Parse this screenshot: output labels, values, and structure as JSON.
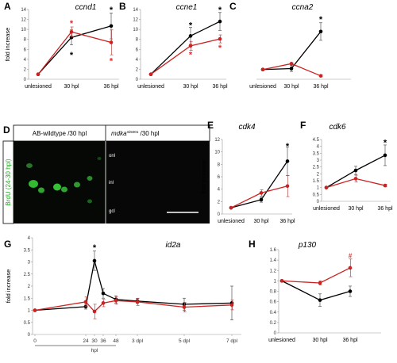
{
  "colors": {
    "black_series": "#000000",
    "red_series": "#cc2222",
    "sig_black": "#000000",
    "sig_red": "#e03030"
  },
  "chart_data": [
    {
      "panel": "A",
      "title": "ccnd1",
      "type": "line",
      "categories": [
        "unlesioned",
        "30 hpl",
        "36 hpl"
      ],
      "ylabel": "fold increase",
      "ylim": [
        0,
        14
      ],
      "yticks": [
        0,
        2,
        4,
        6,
        8,
        10,
        12,
        14
      ],
      "series": [
        {
          "color": "#000000",
          "values": [
            1,
            8.4,
            10.7
          ],
          "errors": [
            0,
            1.5,
            2.6
          ]
        },
        {
          "color": "#cc2222",
          "values": [
            1,
            9.5,
            7.4
          ],
          "errors": [
            0,
            1.0,
            2.5
          ]
        }
      ],
      "markers": [
        {
          "symbol": "*",
          "color": "#000000",
          "x": 1,
          "y": 4.9
        },
        {
          "symbol": "*",
          "color": "#e03030",
          "x": 1,
          "y": 11.3
        },
        {
          "symbol": "*",
          "color": "#000000",
          "x": 2,
          "y": 14.0
        },
        {
          "symbol": "*",
          "color": "#e03030",
          "x": 2,
          "y": 3.7
        }
      ]
    },
    {
      "panel": "B",
      "title": "ccne1",
      "type": "line",
      "categories": [
        "unlesioned",
        "30 hpl",
        "36 hpl"
      ],
      "ylabel": "",
      "ylim": [
        0,
        14
      ],
      "yticks": [
        0,
        2,
        4,
        6,
        8,
        10,
        12,
        14
      ],
      "series": [
        {
          "color": "#000000",
          "values": [
            1,
            8.7,
            11.6
          ],
          "errors": [
            0,
            1.7,
            1.8
          ]
        },
        {
          "color": "#cc2222",
          "values": [
            1,
            6.7,
            8.1
          ],
          "errors": [
            0,
            0.9,
            0.8
          ]
        }
      ],
      "markers": [
        {
          "symbol": "*",
          "color": "#000000",
          "x": 1,
          "y": 10.9
        },
        {
          "symbol": "*",
          "color": "#e03030",
          "x": 1,
          "y": 5.0
        },
        {
          "symbol": "*",
          "color": "#000000",
          "x": 2,
          "y": 14.0
        },
        {
          "symbol": "*",
          "color": "#e03030",
          "x": 2,
          "y": 6.4
        }
      ]
    },
    {
      "panel": "C",
      "title": "ccna2",
      "type": "line",
      "categories": [
        "unlesioned",
        "30 hpl",
        "36 hpl"
      ],
      "ylabel": "",
      "ylim": [
        0,
        7
      ],
      "yticks": [],
      "series": [
        {
          "color": "#000000",
          "values": [
            1,
            1.1,
            4.9
          ],
          "errors": [
            0,
            0.3,
            0.9
          ]
        },
        {
          "color": "#cc2222",
          "values": [
            1,
            1.6,
            0.35
          ],
          "errors": [
            0,
            0.1,
            0.1
          ]
        }
      ],
      "markers": [
        {
          "symbol": "*",
          "color": "#000000",
          "x": 2,
          "y": 6.2
        }
      ]
    },
    {
      "panel": "E",
      "title": "cdk4",
      "type": "line",
      "categories": [
        "unlesioned",
        "30 hpl",
        "36 hpl"
      ],
      "ylabel": "fold increase",
      "ylim": [
        0,
        12
      ],
      "yticks": [
        0,
        2,
        4,
        6,
        8,
        10,
        12
      ],
      "series": [
        {
          "color": "#000000",
          "values": [
            1,
            2.3,
            8.5
          ],
          "errors": [
            0,
            0.4,
            2.3
          ]
        },
        {
          "color": "#cc2222",
          "values": [
            1,
            3.4,
            4.5
          ],
          "errors": [
            0,
            0.5,
            1.7
          ]
        }
      ],
      "markers": [
        {
          "symbol": "*",
          "color": "#000000",
          "x": 2,
          "y": 11.0
        }
      ]
    },
    {
      "panel": "F",
      "title": "cdk6",
      "type": "line",
      "categories": [
        "unlesioned",
        "30 hpl",
        "36 hpl"
      ],
      "ylabel": "",
      "ylim": [
        0,
        4.5
      ],
      "yticks": [
        0,
        0.5,
        1,
        1.5,
        2,
        2.5,
        3,
        3.5,
        4,
        4.5
      ],
      "series": [
        {
          "color": "#000000",
          "values": [
            1,
            2.25,
            3.35
          ],
          "errors": [
            0,
            0.3,
            0.75
          ]
        },
        {
          "color": "#cc2222",
          "values": [
            1,
            1.65,
            1.15
          ],
          "errors": [
            0,
            0.25,
            0.1
          ]
        }
      ],
      "markers": [
        {
          "symbol": "*",
          "color": "#000000",
          "x": 2,
          "y": 4.3
        }
      ]
    },
    {
      "panel": "G",
      "title": "id2a",
      "type": "line",
      "x_numeric": [
        0,
        24,
        30,
        36,
        48,
        72,
        120,
        168
      ],
      "x_tick_labels": [
        "0",
        "24",
        "30",
        "36",
        "48",
        "3 dpl",
        "5 dpl",
        "7 dpl"
      ],
      "x_unit_label": "hpl",
      "ylabel": "fold increase",
      "ylim": [
        0,
        4
      ],
      "yticks": [
        0,
        0.5,
        1,
        1.5,
        2,
        2.5,
        3,
        3.5,
        4
      ],
      "series": [
        {
          "color": "#000000",
          "x": [
            0,
            24,
            30,
            36,
            48,
            72,
            120,
            168
          ],
          "values": [
            1,
            1.15,
            3.05,
            1.7,
            1.45,
            1.38,
            1.25,
            1.3
          ],
          "errors": [
            0,
            0.1,
            0.4,
            0.2,
            0.15,
            0.1,
            0.25,
            0.7
          ]
        },
        {
          "color": "#cc2222",
          "x": [
            0,
            24,
            30,
            36,
            48,
            72,
            120,
            168
          ],
          "values": [
            1,
            1.35,
            0.95,
            1.3,
            1.4,
            1.35,
            1.13,
            1.22
          ],
          "errors": [
            0,
            0.2,
            0.3,
            0.15,
            0.15,
            0.15,
            0.2,
            0.2
          ]
        }
      ],
      "markers": [
        {
          "symbol": "*",
          "color": "#000000",
          "x": 30,
          "y": 3.6
        }
      ]
    },
    {
      "panel": "H",
      "title": "p130",
      "type": "line",
      "categories": [
        "unlesioned",
        "30 hpl",
        "36 hpl"
      ],
      "ylabel": "",
      "ylim": [
        0,
        1.6
      ],
      "yticks": [
        0,
        0.2,
        0.4,
        0.6,
        0.8,
        1,
        1.2,
        1.4,
        1.6
      ],
      "series": [
        {
          "color": "#000000",
          "values": [
            1,
            0.63,
            0.8
          ],
          "errors": [
            0,
            0.12,
            0.1
          ]
        },
        {
          "color": "#cc2222",
          "values": [
            1,
            0.96,
            1.25
          ],
          "errors": [
            0,
            0.04,
            0.17
          ]
        }
      ],
      "markers": [
        {
          "symbol": "#",
          "color": "#e03030",
          "x": 2,
          "y": 1.5
        }
      ]
    }
  ],
  "panel_d": {
    "letter": "D",
    "left_header": "AB-wildtype /30 hpl",
    "right_header_gene": "mdka",
    "right_header_sup": "mi5001",
    "right_header_rest": " /30 hpl",
    "side_label": "BrdU (24-30 hpl)",
    "layers": [
      "onl",
      "inl",
      "gcl"
    ]
  }
}
